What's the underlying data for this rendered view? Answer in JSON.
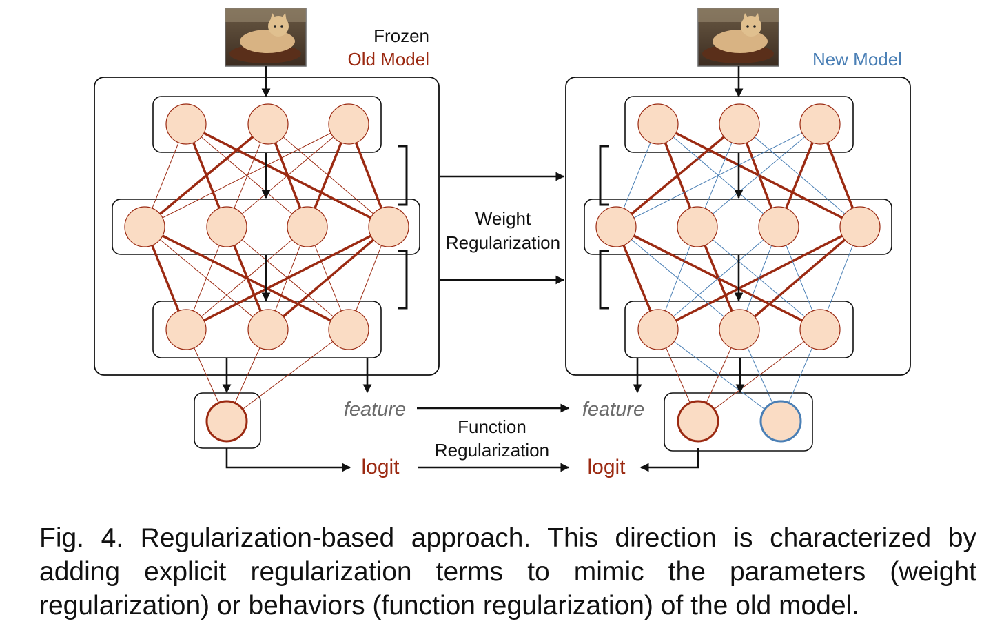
{
  "old_model": {
    "status_label": "Frozen",
    "name_label": "Old Model",
    "feature_label": "feature",
    "logit_label": "logit"
  },
  "new_model": {
    "name_label": "New Model",
    "feature_label": "feature",
    "logit_label": "logit"
  },
  "weight_regularization": {
    "line1": "Weight",
    "line2": "Regularization"
  },
  "function_regularization": {
    "line1": "Function",
    "line2": "Regularization"
  },
  "caption": "Fig. 4. Regularization-based approach. This direction is characterized by adding explicit regularization terms to mimic the parameters (weight regularization) or behaviors (function regularization) of the old model.",
  "colors": {
    "old": "#9b2a12",
    "new": "#4a7fb5",
    "node_fill": "#fadcc4",
    "feature_gray": "#6b6b6b"
  }
}
